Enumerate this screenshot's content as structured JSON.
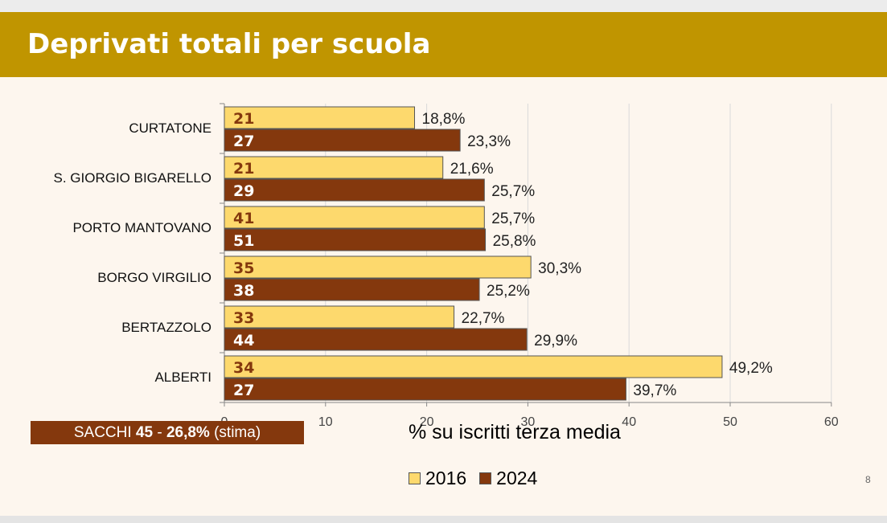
{
  "title": "Deprivati totali per scuola",
  "sacchi_note": {
    "prefix": "SACCHI ",
    "count": "45",
    "separator": " - ",
    "pct": "26,8%",
    "suffix": " (stima)"
  },
  "page_number": "8",
  "colors": {
    "s2016": "#fdd96d",
    "s2024": "#84380d",
    "title_bar": "#c09500",
    "bar_border": "#555555"
  },
  "chart_data": {
    "type": "bar",
    "orientation": "horizontal",
    "categories": [
      "CURTATONE",
      "S. GIORGIO BIGARELLO",
      "PORTO MANTOVANO",
      "BORGO VIRGILIO",
      "BERTAZZOLO",
      "ALBERTI"
    ],
    "series": [
      {
        "name": "2016",
        "values": [
          18.8,
          21.6,
          25.7,
          30.3,
          22.7,
          49.2
        ],
        "labels": [
          "18,8%",
          "21,6%",
          "25,7%",
          "30,3%",
          "22,7%",
          "49,2%"
        ],
        "counts": [
          "21",
          "21",
          "41",
          "35",
          "33",
          "34"
        ]
      },
      {
        "name": "2024",
        "values": [
          23.3,
          25.7,
          25.8,
          25.2,
          29.9,
          39.7
        ],
        "labels": [
          "23,3%",
          "25,7%",
          "25,8%",
          "25,2%",
          "29,9%",
          "39,7%"
        ],
        "counts": [
          "27",
          "29",
          "51",
          "38",
          "44",
          "27"
        ]
      }
    ],
    "xlabel": "% su iscritti terza media",
    "xlim": [
      0,
      60
    ],
    "xticks": [
      0,
      10,
      20,
      30,
      40,
      50,
      60
    ],
    "grid": true,
    "legend": "bottom"
  }
}
